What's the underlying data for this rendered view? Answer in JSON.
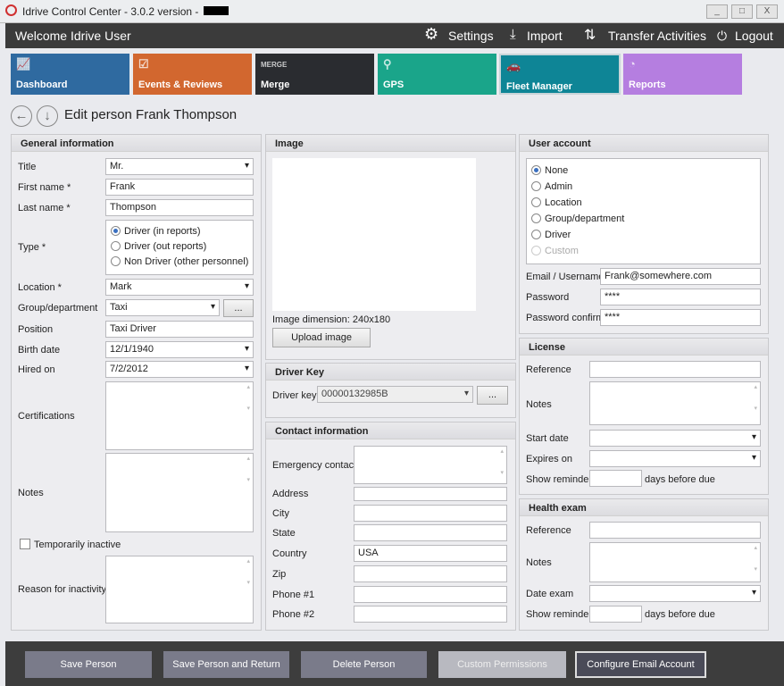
{
  "window": {
    "title": "Idrive Control Center - 3.0.2 version -",
    "minimize": "_",
    "maximize": "□",
    "close": "X"
  },
  "header": {
    "welcome": "Welcome Idrive User",
    "settings": "Settings",
    "import": "Import",
    "transfer": "Transfer Activities",
    "logout": "Logout"
  },
  "tiles": [
    {
      "label": "Dashboard",
      "color": "#2f6aa0",
      "icon": "chart-icon"
    },
    {
      "label": "Events & Reviews",
      "color": "#d2672f",
      "icon": "clipboard-icon"
    },
    {
      "label": "Merge",
      "color": "#2a2c30",
      "icon": "merge-icon"
    },
    {
      "label": "GPS",
      "color": "#1aa58a",
      "icon": "map-pin-icon"
    },
    {
      "label": "Fleet Manager",
      "color": "#0e8596",
      "icon": "cars-icon",
      "active": true
    },
    {
      "label": "Reports",
      "color": "#b57ee0",
      "icon": "pie-chart-icon"
    }
  ],
  "page_title": "Edit person Frank Thompson",
  "general": {
    "title": "General information",
    "title_label": "Title",
    "title_value": "Mr.",
    "first_label": "First name *",
    "first_value": "Frank",
    "last_label": "Last name *",
    "last_value": "Thompson",
    "type_label": "Type *",
    "type_options": [
      "Driver (in reports)",
      "Driver (out reports)",
      "Non Driver (other personnel)"
    ],
    "type_selected": 0,
    "location_label": "Location *",
    "location_value": "Mark",
    "group_label": "Group/department",
    "group_value": "Taxi",
    "group_btn": "...",
    "position_label": "Position",
    "position_value": "Taxi Driver",
    "birth_label": "Birth date",
    "birth_value": "12/1/1940",
    "hired_label": "Hired on",
    "hired_value": "7/2/2012",
    "cert_label": "Certifications",
    "notes_label": "Notes",
    "inactive_label": "Temporarily inactive",
    "reason_label": "Reason for inactivity"
  },
  "image": {
    "title": "Image",
    "dimension": "Image dimension:  240x180",
    "upload": "Upload image"
  },
  "driver_key": {
    "title": "Driver Key",
    "label": "Driver key",
    "value": "00000132985B",
    "btn": "..."
  },
  "contact": {
    "title": "Contact information",
    "emergency": "Emergency contact",
    "address": "Address",
    "city": "City",
    "state": "State",
    "country": "Country",
    "country_value": "USA",
    "zip": "Zip",
    "phone1": "Phone #1",
    "phone2": "Phone #2"
  },
  "account": {
    "title": "User account",
    "roles": [
      "None",
      "Admin",
      "Location",
      "Group/department",
      "Driver",
      "Custom"
    ],
    "selected": 0,
    "email_label": "Email / Username",
    "email_value": "Frank@somewhere.com",
    "password_label": "Password",
    "password_value": "****",
    "confirm_label": "Password confirm",
    "confirm_value": "****"
  },
  "license": {
    "title": "License",
    "reference": "Reference",
    "notes": "Notes",
    "start": "Start date",
    "expires": "Expires on",
    "reminder": "Show reminder",
    "days": "days before due"
  },
  "health": {
    "title": "Health exam",
    "reference": "Reference",
    "notes": "Notes",
    "date": "Date exam",
    "reminder": "Show reminder",
    "days": "days before due"
  },
  "footer": {
    "save": "Save Person",
    "save_return": "Save Person and Return",
    "delete": "Delete Person",
    "permissions": "Custom Permissions",
    "email": "Configure Email Account"
  }
}
